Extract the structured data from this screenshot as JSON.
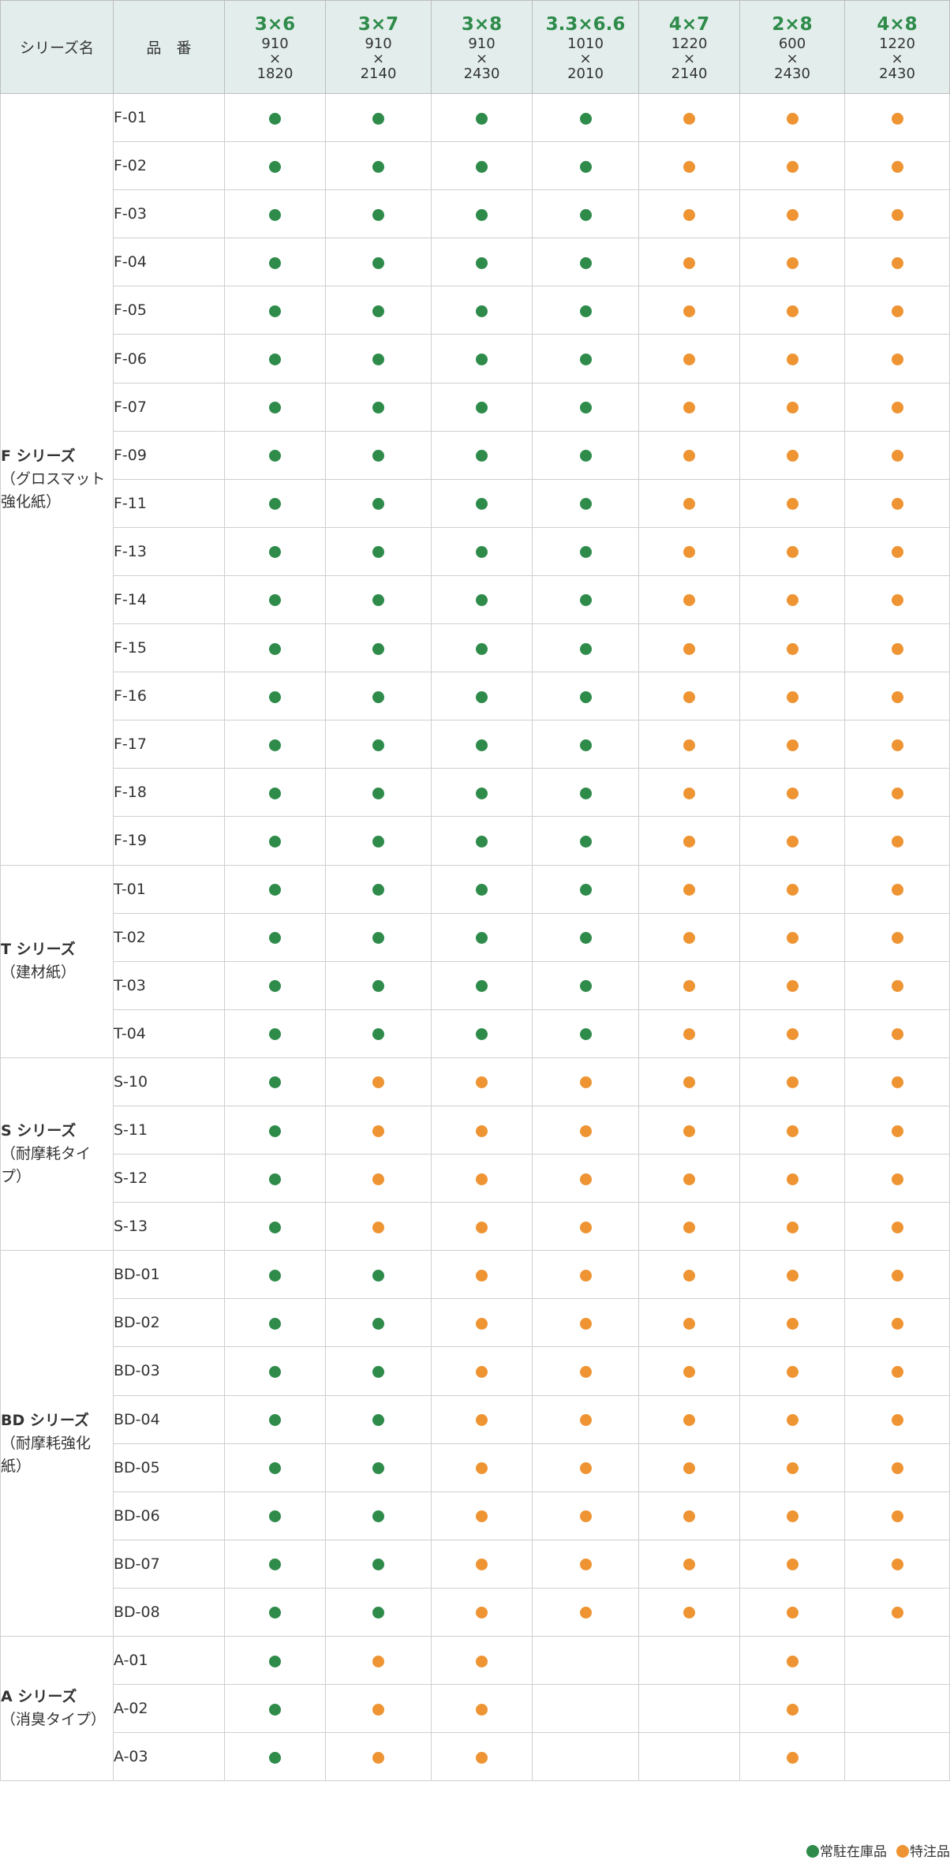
{
  "colors": {
    "stock": "#2e8b4a",
    "special": "#ee9433",
    "header_bg": "#e3eeec",
    "size_text": "#2e8b4a"
  },
  "header": {
    "series_label": "シリーズ名",
    "code_label": "品　番",
    "sizes": [
      {
        "main": "3×6",
        "w": "910",
        "x": "×",
        "h": "1820"
      },
      {
        "main": "3×7",
        "w": "910",
        "x": "×",
        "h": "2140"
      },
      {
        "main": "3×8",
        "w": "910",
        "x": "×",
        "h": "2430"
      },
      {
        "main": "3.3×6.6",
        "w": "1010",
        "x": "×",
        "h": "2010"
      },
      {
        "main": "4×7",
        "w": "1220",
        "x": "×",
        "h": "2140"
      },
      {
        "main": "2×8",
        "w": "600",
        "x": "×",
        "h": "2430"
      },
      {
        "main": "4×8",
        "w": "1220",
        "x": "×",
        "h": "2430"
      }
    ]
  },
  "groups": [
    {
      "name": "F シリーズ",
      "desc": [
        "（グロスマット",
        "強化紙）"
      ],
      "rows": [
        {
          "code": "F-01",
          "marks": [
            "s",
            "s",
            "s",
            "s",
            "o",
            "o",
            "o"
          ]
        },
        {
          "code": "F-02",
          "marks": [
            "s",
            "s",
            "s",
            "s",
            "o",
            "o",
            "o"
          ]
        },
        {
          "code": "F-03",
          "marks": [
            "s",
            "s",
            "s",
            "s",
            "o",
            "o",
            "o"
          ]
        },
        {
          "code": "F-04",
          "marks": [
            "s",
            "s",
            "s",
            "s",
            "o",
            "o",
            "o"
          ]
        },
        {
          "code": "F-05",
          "marks": [
            "s",
            "s",
            "s",
            "s",
            "o",
            "o",
            "o"
          ]
        },
        {
          "code": "F-06",
          "marks": [
            "s",
            "s",
            "s",
            "s",
            "o",
            "o",
            "o"
          ]
        },
        {
          "code": "F-07",
          "marks": [
            "s",
            "s",
            "s",
            "s",
            "o",
            "o",
            "o"
          ]
        },
        {
          "code": "F-09",
          "marks": [
            "s",
            "s",
            "s",
            "s",
            "o",
            "o",
            "o"
          ]
        },
        {
          "code": "F-11",
          "marks": [
            "s",
            "s",
            "s",
            "s",
            "o",
            "o",
            "o"
          ]
        },
        {
          "code": "F-13",
          "marks": [
            "s",
            "s",
            "s",
            "s",
            "o",
            "o",
            "o"
          ]
        },
        {
          "code": "F-14",
          "marks": [
            "s",
            "s",
            "s",
            "s",
            "o",
            "o",
            "o"
          ]
        },
        {
          "code": "F-15",
          "marks": [
            "s",
            "s",
            "s",
            "s",
            "o",
            "o",
            "o"
          ]
        },
        {
          "code": "F-16",
          "marks": [
            "s",
            "s",
            "s",
            "s",
            "o",
            "o",
            "o"
          ]
        },
        {
          "code": "F-17",
          "marks": [
            "s",
            "s",
            "s",
            "s",
            "o",
            "o",
            "o"
          ]
        },
        {
          "code": "F-18",
          "marks": [
            "s",
            "s",
            "s",
            "s",
            "o",
            "o",
            "o"
          ]
        },
        {
          "code": "F-19",
          "marks": [
            "s",
            "s",
            "s",
            "s",
            "o",
            "o",
            "o"
          ]
        }
      ]
    },
    {
      "name": "T シリーズ",
      "desc": [
        "（建材紙）"
      ],
      "rows": [
        {
          "code": "T-01",
          "marks": [
            "s",
            "s",
            "s",
            "s",
            "o",
            "o",
            "o"
          ]
        },
        {
          "code": "T-02",
          "marks": [
            "s",
            "s",
            "s",
            "s",
            "o",
            "o",
            "o"
          ]
        },
        {
          "code": "T-03",
          "marks": [
            "s",
            "s",
            "s",
            "s",
            "o",
            "o",
            "o"
          ]
        },
        {
          "code": "T-04",
          "marks": [
            "s",
            "s",
            "s",
            "s",
            "o",
            "o",
            "o"
          ]
        }
      ]
    },
    {
      "name": "S シリーズ",
      "desc": [
        "（耐摩耗タイプ）"
      ],
      "rows": [
        {
          "code": "S-10",
          "marks": [
            "s",
            "o",
            "o",
            "o",
            "o",
            "o",
            "o"
          ]
        },
        {
          "code": "S-11",
          "marks": [
            "s",
            "o",
            "o",
            "o",
            "o",
            "o",
            "o"
          ]
        },
        {
          "code": "S-12",
          "marks": [
            "s",
            "o",
            "o",
            "o",
            "o",
            "o",
            "o"
          ]
        },
        {
          "code": "S-13",
          "marks": [
            "s",
            "o",
            "o",
            "o",
            "o",
            "o",
            "o"
          ]
        }
      ]
    },
    {
      "name": "BD シリーズ",
      "desc": [
        "（耐摩耗強化紙）"
      ],
      "rows": [
        {
          "code": "BD-01",
          "marks": [
            "s",
            "s",
            "o",
            "o",
            "o",
            "o",
            "o"
          ]
        },
        {
          "code": "BD-02",
          "marks": [
            "s",
            "s",
            "o",
            "o",
            "o",
            "o",
            "o"
          ]
        },
        {
          "code": "BD-03",
          "marks": [
            "s",
            "s",
            "o",
            "o",
            "o",
            "o",
            "o"
          ]
        },
        {
          "code": "BD-04",
          "marks": [
            "s",
            "s",
            "o",
            "o",
            "o",
            "o",
            "o"
          ]
        },
        {
          "code": "BD-05",
          "marks": [
            "s",
            "s",
            "o",
            "o",
            "o",
            "o",
            "o"
          ]
        },
        {
          "code": "BD-06",
          "marks": [
            "s",
            "s",
            "o",
            "o",
            "o",
            "o",
            "o"
          ]
        },
        {
          "code": "BD-07",
          "marks": [
            "s",
            "s",
            "o",
            "o",
            "o",
            "o",
            "o"
          ]
        },
        {
          "code": "BD-08",
          "marks": [
            "s",
            "s",
            "o",
            "o",
            "o",
            "o",
            "o"
          ]
        }
      ]
    },
    {
      "name": "A シリーズ",
      "desc": [
        "（消臭タイプ）"
      ],
      "rows": [
        {
          "code": "A-01",
          "marks": [
            "s",
            "o",
            "o",
            "",
            "",
            "o",
            ""
          ]
        },
        {
          "code": "A-02",
          "marks": [
            "s",
            "o",
            "o",
            "",
            "",
            "o",
            ""
          ]
        },
        {
          "code": "A-03",
          "marks": [
            "s",
            "o",
            "o",
            "",
            "",
            "o",
            ""
          ]
        }
      ]
    }
  ],
  "legend": {
    "stock_label": "常駐在庫品",
    "special_label": "特注品"
  }
}
